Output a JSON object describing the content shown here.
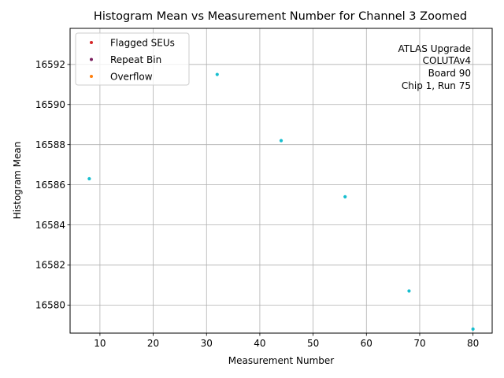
{
  "chart_data": {
    "type": "scatter",
    "title": "Histogram Mean vs Measurement Number for Channel 3 Zoomed",
    "xlabel": "Measurement Number",
    "ylabel": "Histogram Mean",
    "xlim": [
      4.4,
      83.6
    ],
    "ylim": [
      16578.6,
      16593.8
    ],
    "xticks": [
      10,
      20,
      30,
      40,
      50,
      60,
      70,
      80
    ],
    "xtick_labels": [
      "10",
      "20",
      "30",
      "40",
      "50",
      "60",
      "70",
      "80"
    ],
    "yticks": [
      16580,
      16582,
      16584,
      16586,
      16588,
      16590,
      16592
    ],
    "ytick_labels": [
      "16580",
      "16582",
      "16584",
      "16586",
      "16588",
      "16590",
      "16592"
    ],
    "grid": true,
    "legend_position": "upper-left",
    "series": [
      {
        "name": "",
        "color": "#17becf",
        "x": [
          8,
          32,
          44,
          56,
          68,
          80
        ],
        "y": [
          16586.3,
          16591.5,
          16588.2,
          16585.4,
          16580.7,
          16578.8
        ]
      }
    ],
    "legend": [
      {
        "label": "Flagged SEUs",
        "color": "#d62728"
      },
      {
        "label": "Repeat Bin",
        "color": "#7b1f5f"
      },
      {
        "label": "Overflow",
        "color": "#ff7f0e"
      }
    ],
    "annotation_lines": [
      "ATLAS Upgrade",
      "COLUTAv4",
      "Board 90",
      "Chip 1, Run 75"
    ]
  }
}
